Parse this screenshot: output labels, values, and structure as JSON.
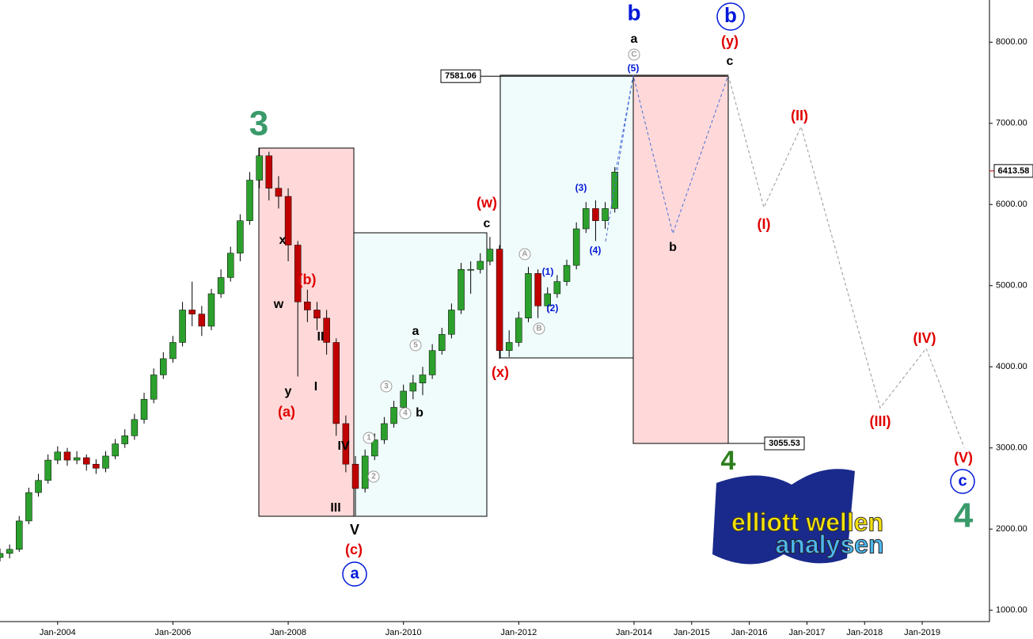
{
  "chart_data": {
    "type": "candlestick",
    "x": [
      "2003-01",
      "2003-03",
      "2003-05",
      "2003-07",
      "2003-09",
      "2003-11",
      "2004-01",
      "2004-03",
      "2004-05",
      "2004-07",
      "2004-09",
      "2004-11",
      "2005-01",
      "2005-03",
      "2005-05",
      "2005-07",
      "2005-09",
      "2005-11",
      "2006-01",
      "2006-03",
      "2006-05",
      "2006-07",
      "2006-09",
      "2006-11",
      "2007-01",
      "2007-03",
      "2007-05",
      "2007-07",
      "2007-09",
      "2007-11",
      "2008-01",
      "2008-03",
      "2008-05",
      "2008-07",
      "2008-09",
      "2008-11",
      "2009-01",
      "2009-03",
      "2009-05",
      "2009-07",
      "2009-09",
      "2009-11",
      "2010-01",
      "2010-03",
      "2010-05",
      "2010-07",
      "2010-09",
      "2010-11",
      "2011-01",
      "2011-03",
      "2011-05",
      "2011-07",
      "2011-09",
      "2011-11",
      "2012-01",
      "2012-03",
      "2012-05",
      "2012-07",
      "2012-09",
      "2012-11",
      "2013-01",
      "2013-03",
      "2013-05",
      "2013-07",
      "2013-09"
    ],
    "open": [
      1650,
      1700,
      1750,
      2100,
      2450,
      2600,
      2850,
      2950,
      2850,
      2880,
      2800,
      2750,
      2900,
      3050,
      3150,
      3350,
      3600,
      3900,
      4100,
      4300,
      4700,
      4650,
      4500,
      4900,
      5100,
      5400,
      5800,
      6300,
      6600,
      6200,
      6100,
      5500,
      4800,
      4700,
      4600,
      4300,
      3300,
      2800,
      2500,
      2900,
      3100,
      3300,
      3500,
      3700,
      3800,
      3900,
      4200,
      4400,
      4700,
      5200,
      5200,
      5300,
      5450,
      4200,
      4300,
      4600,
      5150,
      4750,
      4900,
      5050,
      5250,
      5700,
      5950,
      5800,
      5950
    ],
    "high": [
      1760,
      1810,
      2160,
      2510,
      2680,
      2920,
      3020,
      3000,
      2960,
      2920,
      2860,
      2960,
      3110,
      3230,
      3420,
      3680,
      3980,
      4180,
      4380,
      4800,
      5050,
      4750,
      4960,
      5200,
      5480,
      5880,
      6400,
      6694,
      6650,
      6350,
      6200,
      5550,
      4950,
      4800,
      4700,
      4350,
      3400,
      2900,
      2980,
      3180,
      3380,
      3580,
      3780,
      3900,
      4000,
      4280,
      4480,
      4780,
      5280,
      5300,
      5400,
      5600,
      5500,
      4450,
      4680,
      5230,
      5200,
      4980,
      5130,
      5320,
      5780,
      6030,
      6050,
      6030,
      6460
    ],
    "low": [
      1600,
      1640,
      1720,
      2060,
      2400,
      2560,
      2800,
      2780,
      2800,
      2720,
      2680,
      2700,
      2860,
      3000,
      3100,
      3300,
      3550,
      3850,
      4050,
      4250,
      4500,
      4380,
      4450,
      4850,
      5050,
      5300,
      5750,
      6200,
      6050,
      5950,
      5300,
      3880,
      4550,
      4450,
      4150,
      3150,
      2700,
      2165,
      2450,
      2850,
      3050,
      3250,
      3450,
      3600,
      3650,
      3850,
      4150,
      4350,
      4650,
      4900,
      5150,
      5250,
      4100,
      4120,
      4250,
      4550,
      4600,
      4680,
      4850,
      5000,
      5200,
      5650,
      5550,
      5700,
      5900
    ],
    "close": [
      1700,
      1750,
      2100,
      2450,
      2600,
      2850,
      2950,
      2850,
      2880,
      2800,
      2750,
      2900,
      3050,
      3150,
      3350,
      3600,
      3900,
      4100,
      4300,
      4700,
      4650,
      4500,
      4900,
      5100,
      5400,
      5800,
      6300,
      6600,
      6200,
      6100,
      5500,
      4800,
      4700,
      4600,
      4300,
      3300,
      2800,
      2500,
      2900,
      3100,
      3300,
      3500,
      3700,
      3800,
      3900,
      4200,
      4400,
      4700,
      5200,
      5200,
      5300,
      5450,
      4200,
      4300,
      4600,
      5150,
      4750,
      4900,
      5050,
      5250,
      5700,
      5950,
      5800,
      5950,
      6400
    ],
    "colors": {
      "up": "#2ca02c",
      "down": "#c00000"
    },
    "xlim": [
      "2003-01",
      "2020-03"
    ],
    "xticks": [
      {
        "value": "2004-01",
        "label": "Jan-2004"
      },
      {
        "value": "2006-01",
        "label": "Jan-2006"
      },
      {
        "value": "2008-01",
        "label": "Jan-2008"
      },
      {
        "value": "2010-01",
        "label": "Jan-2010"
      },
      {
        "value": "2012-01",
        "label": "Jan-2012"
      },
      {
        "value": "2014-01",
        "label": "Jan-2014"
      },
      {
        "value": "2015-01",
        "label": "Jan-2015"
      },
      {
        "value": "2016-01",
        "label": "Jan-2016"
      },
      {
        "value": "2017-01",
        "label": "Jan-2017"
      },
      {
        "value": "2018-01",
        "label": "Jan-2018"
      },
      {
        "value": "2019-01",
        "label": "Jan-2019"
      }
    ],
    "ylim": [
      860,
      8520
    ],
    "yticks": [
      {
        "value": 1000,
        "label": "1000.00"
      },
      {
        "value": 2000,
        "label": "2000.00"
      },
      {
        "value": 3000,
        "label": "3000.00"
      },
      {
        "value": 4000,
        "label": "4000.00"
      },
      {
        "value": 5000,
        "label": "5000.00"
      },
      {
        "value": 6000,
        "label": "6000.00"
      },
      {
        "value": 7000,
        "label": "7000.00"
      },
      {
        "value": 8000,
        "label": "8000.00"
      }
    ],
    "price_labels": [
      7581.06,
      3055.53,
      6413.58
    ],
    "annotations": [
      "3",
      "x",
      "(b)",
      "w",
      "II",
      "I",
      "y",
      "(a)",
      "IV",
      "III",
      "V",
      "(c)",
      "a",
      "a",
      "5",
      "3",
      "4",
      "b",
      "1",
      "2",
      "(w)",
      "c",
      "(x)",
      "A",
      "B",
      "(1)",
      "(2)",
      "(3)",
      "(4)",
      "(5)",
      "C",
      "a",
      "b",
      "b",
      "(y)",
      "c",
      "b",
      "(I)",
      "(II)",
      "(III)",
      "(IV)",
      "(V)",
      "c",
      "4",
      "4"
    ],
    "logo": [
      "elliott wellen",
      "analysen"
    ]
  }
}
